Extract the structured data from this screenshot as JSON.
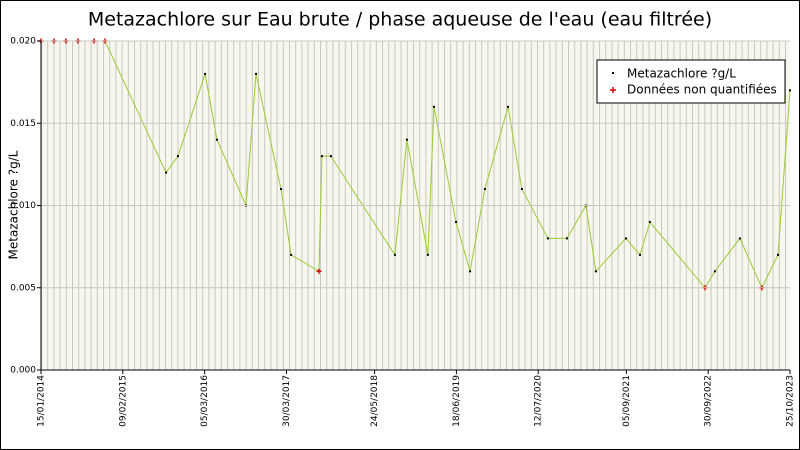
{
  "chart_data": {
    "type": "line",
    "title": "Metazachlore sur Eau brute / phase aqueuse de l'eau (eau filtrée)",
    "y_label": "Metazachlore ?g/L",
    "x": [
      "2014-01-15",
      "2014-03-18",
      "2014-05-14",
      "2014-07-10",
      "2014-09-25",
      "2014-11-16",
      "2015-09-03",
      "2015-10-30",
      "2016-03-07",
      "2016-05-03",
      "2016-09-18",
      "2016-11-05",
      "2017-03-04",
      "2017-04-21",
      "2017-09-01",
      "2017-09-15",
      "2017-10-28",
      "2018-08-29",
      "2018-10-25",
      "2019-02-02",
      "2019-03-03",
      "2019-06-16",
      "2019-08-22",
      "2019-11-01",
      "2020-02-19",
      "2020-04-25",
      "2020-08-27",
      "2020-11-26",
      "2021-02-24",
      "2021-04-13",
      "2021-09-03",
      "2021-11-09",
      "2021-12-26",
      "2022-09-15",
      "2022-11-01",
      "2023-02-28",
      "2023-06-13",
      "2023-08-29",
      "2023-10-25"
    ],
    "series": [
      {
        "name": "Metazachlore ?g/L",
        "color": "#99cc33",
        "marker_color": "#000000",
        "values": [
          0.02,
          0.02,
          0.02,
          0.02,
          0.02,
          0.02,
          0.012,
          0.013,
          0.018,
          0.014,
          0.01,
          0.018,
          0.011,
          0.007,
          0.006,
          0.013,
          0.013,
          0.007,
          0.014,
          0.007,
          0.016,
          0.009,
          0.006,
          0.011,
          0.016,
          0.011,
          0.008,
          0.008,
          0.01,
          0.006,
          0.008,
          0.007,
          0.009,
          0.005,
          0.006,
          0.008,
          0.005,
          0.007,
          0.017
        ],
        "non_quantified": [
          true,
          true,
          true,
          true,
          true,
          true,
          false,
          false,
          false,
          false,
          false,
          false,
          false,
          false,
          true,
          false,
          false,
          false,
          false,
          false,
          false,
          false,
          false,
          false,
          false,
          false,
          false,
          false,
          false,
          false,
          false,
          false,
          false,
          true,
          false,
          false,
          true,
          false,
          false
        ]
      }
    ],
    "non_quantified_legend": {
      "name": "Données non quantifiées",
      "color": "#dd0000"
    },
    "xlim": [
      "2014-01-15",
      "2023-10-25"
    ],
    "xticks": [
      {
        "value": "2014-01-15",
        "label": "15/01/2014"
      },
      {
        "value": "2015-02-09",
        "label": "09/02/2015"
      },
      {
        "value": "2016-03-05",
        "label": "05/03/2016"
      },
      {
        "value": "2017-03-30",
        "label": "30/03/2017"
      },
      {
        "value": "2018-05-24",
        "label": "24/05/2018"
      },
      {
        "value": "2019-06-18",
        "label": "18/06/2019"
      },
      {
        "value": "2020-07-12",
        "label": "12/07/2020"
      },
      {
        "value": "2021-09-05",
        "label": "05/09/2021"
      },
      {
        "value": "2022-09-30",
        "label": "30/09/2022"
      },
      {
        "value": "2023-10-25",
        "label": "25/10/2023"
      }
    ],
    "ylim": [
      0,
      0.02
    ],
    "yticks": [
      {
        "value": 0,
        "label": "0.000"
      },
      {
        "value": 0.005,
        "label": "0.005"
      },
      {
        "value": 0.01,
        "label": "0.010"
      },
      {
        "value": 0.015,
        "label": "0.015"
      },
      {
        "value": 0.02,
        "label": "0.020"
      }
    ],
    "grid": true,
    "legend_position": "upper right"
  }
}
